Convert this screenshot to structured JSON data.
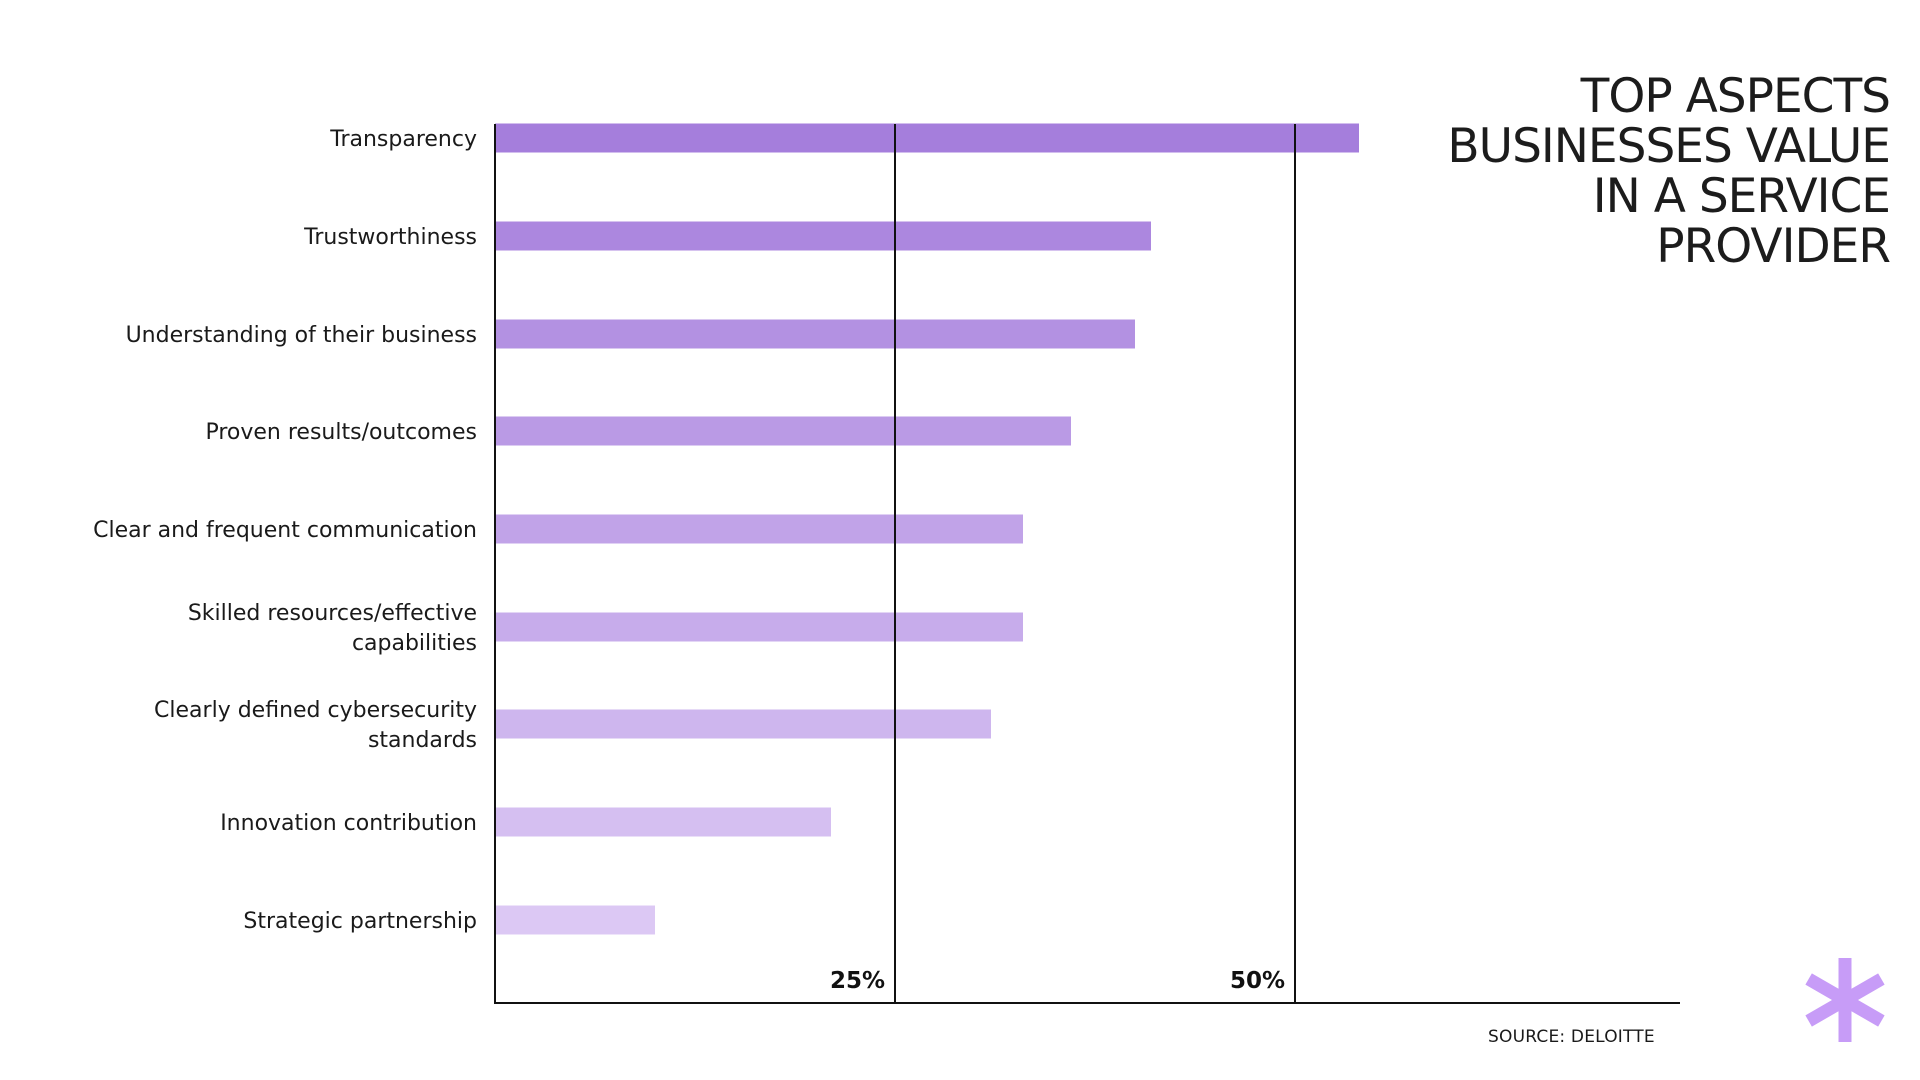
{
  "title_lines": [
    "TOP ASPECTS",
    "BUSINESSES VALUE",
    "IN A SERVICE",
    "PROVIDER"
  ],
  "source": "SOURCE: DELOITTE",
  "colors": {
    "bar_top": "#a57edc",
    "bar_bottom": "#dcc8f4",
    "axis": "#111111",
    "logo": "#c79cf7"
  },
  "chart_data": {
    "type": "bar",
    "orientation": "horizontal",
    "categories": [
      [
        "Transparency"
      ],
      [
        "Trustworthiness"
      ],
      [
        "Understanding of their business"
      ],
      [
        "Proven results/outcomes"
      ],
      [
        "Clear and frequent communication"
      ],
      [
        "Skilled resources/effective",
        "capabilities"
      ],
      [
        "Clearly defined cybersecurity",
        "standards"
      ],
      [
        "Innovation contribution"
      ],
      [
        "Strategic partnership"
      ]
    ],
    "values": [
      54,
      41,
      40,
      36,
      33,
      33,
      31,
      21,
      10
    ],
    "unit": "%",
    "xlim": [
      0,
      75
    ],
    "ticks": [
      25,
      50
    ],
    "tick_labels": [
      "25%",
      "50%"
    ],
    "grid": true,
    "legend": "none"
  }
}
